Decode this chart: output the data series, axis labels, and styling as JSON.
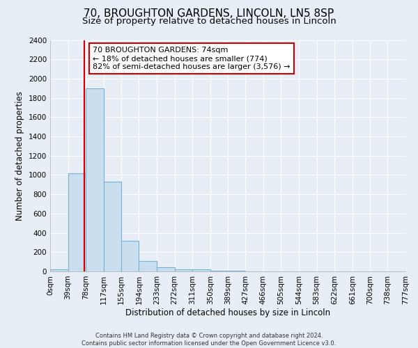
{
  "title": "70, BROUGHTON GARDENS, LINCOLN, LN5 8SP",
  "subtitle": "Size of property relative to detached houses in Lincoln",
  "xlabel": "Distribution of detached houses by size in Lincoln",
  "ylabel": "Number of detached properties",
  "footer_line1": "Contains HM Land Registry data © Crown copyright and database right 2024.",
  "footer_line2": "Contains public sector information licensed under the Open Government Licence v3.0.",
  "bin_edges": [
    0,
    39,
    78,
    117,
    155,
    194,
    233,
    272,
    311,
    350,
    389,
    427,
    466,
    505,
    544,
    583,
    622,
    661,
    700,
    738,
    777
  ],
  "bin_labels": [
    "0sqm",
    "39sqm",
    "78sqm",
    "117sqm",
    "155sqm",
    "194sqm",
    "233sqm",
    "272sqm",
    "311sqm",
    "350sqm",
    "389sqm",
    "427sqm",
    "466sqm",
    "505sqm",
    "544sqm",
    "583sqm",
    "622sqm",
    "661sqm",
    "700sqm",
    "738sqm",
    "777sqm"
  ],
  "bar_heights": [
    20,
    1020,
    1900,
    930,
    315,
    105,
    45,
    25,
    20,
    10,
    5,
    0,
    0,
    0,
    0,
    0,
    0,
    0,
    0,
    0
  ],
  "bar_color": "#c9dff0",
  "bar_edge_color": "#7aafd4",
  "property_line_x": 74,
  "property_line_color": "#cc0000",
  "annotation_text_line1": "70 BROUGHTON GARDENS: 74sqm",
  "annotation_text_line2": "← 18% of detached houses are smaller (774)",
  "annotation_text_line3": "82% of semi-detached houses are larger (3,576) →",
  "annotation_box_color": "#ffffff",
  "annotation_box_edge_color": "#cc0000",
  "ylim": [
    0,
    2400
  ],
  "yticks": [
    0,
    200,
    400,
    600,
    800,
    1000,
    1200,
    1400,
    1600,
    1800,
    2000,
    2200,
    2400
  ],
  "background_color": "#e8eef5",
  "plot_bg_color": "#e8eef5",
  "grid_color": "#ffffff",
  "title_fontsize": 11,
  "subtitle_fontsize": 9.5,
  "xlabel_fontsize": 8.5,
  "ylabel_fontsize": 8.5,
  "tick_fontsize": 7.5,
  "annot_fontsize": 8
}
